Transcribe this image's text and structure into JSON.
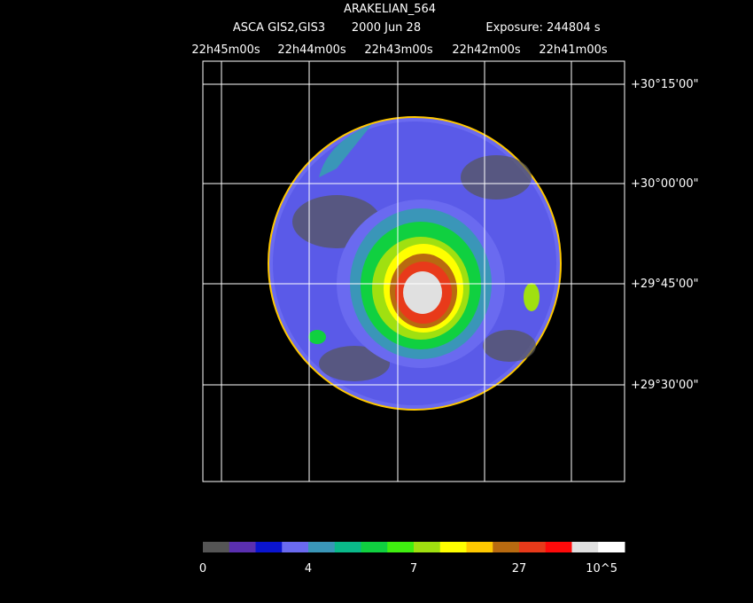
{
  "header": {
    "title": "ARAKELIAN_564",
    "instrument": "ASCA GIS2,GIS3",
    "date": "2000 Jun 28",
    "exposure": "Exposure: 244804 s"
  },
  "ra_labels": [
    "22h45m00s",
    "22h44m00s",
    "22h43m00s",
    "22h42m00s",
    "22h41m00s"
  ],
  "dec_labels": [
    "+30°15'00\"",
    "+30°00'00\"",
    "+29°45'00\"",
    "+29°30'00\""
  ],
  "colorbar": {
    "colors": [
      "#555555",
      "#5a2fb0",
      "#0a14d0",
      "#6a6af0",
      "#3a96b8",
      "#0ab98a",
      "#10d040",
      "#40ee10",
      "#a0e010",
      "#ffff00",
      "#ffc800",
      "#b86a10",
      "#e83a1a",
      "#ff0a0a",
      "#e0e0e0",
      "#ffffff"
    ],
    "labels": [
      "0",
      "4",
      "7",
      "27",
      "10^5"
    ]
  }
}
